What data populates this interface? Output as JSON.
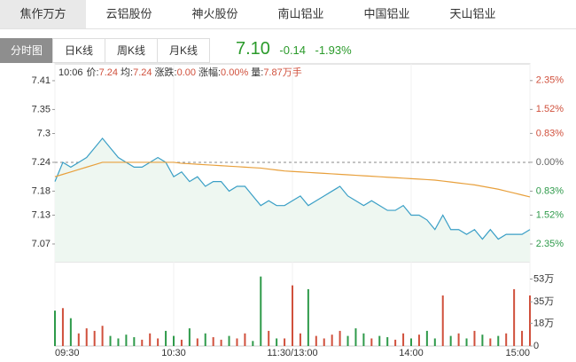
{
  "stock_tabs": [
    "焦作万方",
    "云铝股份",
    "神火股份",
    "南山铝业",
    "中国铝业",
    "天山铝业"
  ],
  "period_tabs": [
    "分时图",
    "日K线",
    "周K线",
    "月K线"
  ],
  "quote": {
    "price": "7.10",
    "change": "-0.14",
    "change_pct": "-1.93%"
  },
  "info": {
    "time": "10:06",
    "items": [
      {
        "label": "价:",
        "value": "7.24"
      },
      {
        "label": "均:",
        "value": "7.24"
      },
      {
        "label": "涨跌:",
        "value": "0.00"
      },
      {
        "label": "涨幅:",
        "value": "0.00%"
      },
      {
        "label": "量:",
        "value": "7.87万手"
      }
    ]
  },
  "chart_data": [
    {
      "type": "line",
      "x": [
        0,
        4,
        8,
        12,
        16,
        20,
        24,
        28,
        32,
        36,
        40,
        44,
        48,
        52,
        56,
        60,
        64,
        68,
        72,
        76,
        80,
        84,
        88,
        92,
        96,
        100,
        104,
        108,
        112,
        116,
        120,
        124,
        128,
        132,
        136,
        140,
        144,
        148,
        152,
        156,
        160,
        164,
        168,
        172,
        176,
        180,
        184,
        188,
        192,
        196,
        200,
        204,
        208,
        212,
        216,
        220,
        224,
        228,
        232,
        236,
        240
      ],
      "xlim": [
        0,
        240
      ],
      "xticks": [
        {
          "value": 0,
          "label": "09:30"
        },
        {
          "value": 60,
          "label": "10:30"
        },
        {
          "value": 120,
          "label": "11:30/13:00"
        },
        {
          "value": 180,
          "label": "14:00"
        },
        {
          "value": 240,
          "label": "15:00"
        }
      ],
      "ylim": [
        7.033,
        7.445
      ],
      "yticks": [
        7.41,
        7.35,
        7.3,
        7.24,
        7.18,
        7.13,
        7.07
      ],
      "reference": 7.24,
      "y2lim": [
        -2.86,
        2.83
      ],
      "y2ticks": [
        {
          "value": 2.35,
          "label": "2.35%"
        },
        {
          "value": 1.52,
          "label": "1.52%"
        },
        {
          "value": 0.83,
          "label": "0.83%"
        },
        {
          "value": 0,
          "label": "0.00%"
        },
        {
          "value": -0.83,
          "label": "0.83%"
        },
        {
          "value": -1.52,
          "label": "1.52%"
        },
        {
          "value": -2.35,
          "label": "2.35%"
        }
      ],
      "up_color": "#d0503c",
      "down_color": "#2e9a4a",
      "flat_color": "#666666",
      "fill_color": "#eef7f1",
      "series": [
        {
          "color": "#3a9fc6",
          "values": [
            7.2,
            7.24,
            7.23,
            7.24,
            7.25,
            7.27,
            7.29,
            7.27,
            7.25,
            7.24,
            7.23,
            7.23,
            7.24,
            7.25,
            7.24,
            7.21,
            7.22,
            7.2,
            7.21,
            7.19,
            7.2,
            7.2,
            7.18,
            7.19,
            7.19,
            7.17,
            7.15,
            7.16,
            7.15,
            7.15,
            7.16,
            7.17,
            7.15,
            7.16,
            7.17,
            7.18,
            7.19,
            7.17,
            7.16,
            7.15,
            7.16,
            7.15,
            7.14,
            7.14,
            7.15,
            7.13,
            7.13,
            7.12,
            7.1,
            7.13,
            7.1,
            7.1,
            7.09,
            7.1,
            7.08,
            7.1,
            7.08,
            7.09,
            7.09,
            7.09,
            7.1
          ]
        },
        {
          "color": "#e8a03c",
          "values": [
            7.21,
            7.215,
            7.22,
            7.225,
            7.23,
            7.235,
            7.24,
            7.24,
            7.24,
            7.24,
            7.24,
            7.24,
            7.24,
            7.24,
            7.24,
            7.24,
            7.238,
            7.237,
            7.236,
            7.235,
            7.234,
            7.233,
            7.232,
            7.231,
            7.23,
            7.229,
            7.228,
            7.226,
            7.224,
            7.222,
            7.221,
            7.22,
            7.219,
            7.218,
            7.217,
            7.216,
            7.215,
            7.214,
            7.213,
            7.212,
            7.211,
            7.21,
            7.209,
            7.208,
            7.207,
            7.206,
            7.205,
            7.204,
            7.203,
            7.201,
            7.199,
            7.197,
            7.195,
            7.193,
            7.19,
            7.187,
            7.184,
            7.18,
            7.176,
            7.172,
            7.168
          ]
        }
      ]
    },
    {
      "type": "bar",
      "x": [
        0,
        4,
        8,
        12,
        16,
        20,
        24,
        28,
        32,
        36,
        40,
        44,
        48,
        52,
        56,
        60,
        64,
        68,
        72,
        76,
        80,
        84,
        88,
        92,
        96,
        100,
        104,
        108,
        112,
        116,
        120,
        124,
        128,
        132,
        136,
        140,
        144,
        148,
        152,
        156,
        160,
        164,
        168,
        172,
        176,
        180,
        184,
        188,
        192,
        196,
        200,
        204,
        208,
        212,
        216,
        220,
        224,
        228,
        232,
        236,
        240
      ],
      "xlim": [
        0,
        240
      ],
      "ylim": [
        0,
        66
      ],
      "yticks": [
        {
          "value": 53,
          "label": "53万"
        },
        {
          "value": 35,
          "label": "35万"
        },
        {
          "value": 18,
          "label": "18万"
        },
        0
      ],
      "up_color": "#d0503c",
      "down_color": "#2e9a4a",
      "values": [
        28,
        30,
        22,
        10,
        14,
        12,
        16,
        8,
        6,
        9,
        7,
        5,
        10,
        6,
        12,
        8,
        5,
        14,
        6,
        10,
        7,
        5,
        8,
        6,
        10,
        4,
        55,
        12,
        6,
        6,
        48,
        10,
        45,
        8,
        6,
        9,
        12,
        8,
        14,
        10,
        6,
        8,
        7,
        5,
        10,
        6,
        9,
        12,
        6,
        40,
        8,
        10,
        6,
        12,
        9,
        6,
        8,
        10,
        45,
        12,
        40
      ]
    }
  ]
}
